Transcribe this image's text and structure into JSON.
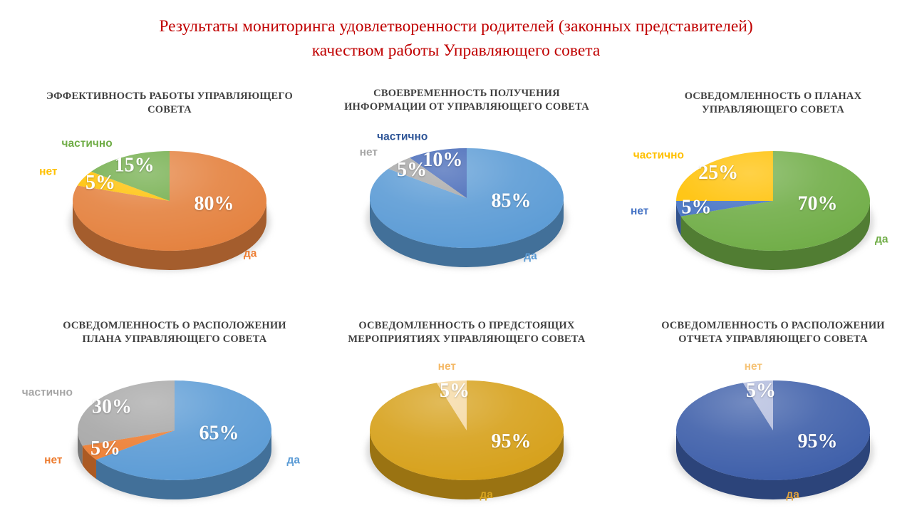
{
  "page_title": {
    "line1": "Результаты мониторинга удовлетворенности родителей (законных представителей)",
    "line2": "качеством работы Управляющего совета",
    "color": "#C00000"
  },
  "chart_data": [
    {
      "type": "pie",
      "title": "ЭФФЕКТИВНОСТЬ РАБОТЫ УПРАВЛЯЮЩЕГО СОВЕТА",
      "labels": [
        "да",
        "нет",
        "частично"
      ],
      "values": [
        80,
        5,
        15
      ],
      "unit": "%",
      "colors": [
        "#E4813E",
        "#FFC000",
        "#6FAC47"
      ],
      "label_colors": [
        "#ED7D31",
        "#FFC000",
        "#70AD47"
      ],
      "percent_label_color": "#FFFFFF",
      "legend": "none",
      "labels_position": "outside",
      "style": "3d-pie"
    },
    {
      "type": "pie",
      "title": "СВОЕВРЕМЕННОСТЬ ПОЛУЧЕНИЯ ИНФОРМАЦИИ ОТ УПРАВЛЯЮЩЕГО СОВЕТА",
      "labels": [
        "да",
        "нет",
        "частично"
      ],
      "values": [
        85,
        5,
        10
      ],
      "unit": "%",
      "colors": [
        "#5B9BD5",
        "#A6A6A6",
        "#3E63B5"
      ],
      "label_colors": [
        "#5B9BD5",
        "#A6A6A6",
        "#2E5597"
      ],
      "percent_label_color": "#FFFFFF",
      "legend": "none",
      "labels_position": "outside",
      "style": "3d-pie"
    },
    {
      "type": "pie",
      "title": "ОСВЕДОМЛЕННОСТЬ О ПЛАНАХ УПРАВЛЯЮЩЕГО СОВЕТА",
      "labels": [
        "да",
        "нет",
        "частично"
      ],
      "values": [
        70,
        5,
        25
      ],
      "unit": "%",
      "colors": [
        "#70AD47",
        "#4472C4",
        "#FFC000"
      ],
      "label_colors": [
        "#70AD47",
        "#4472C4",
        "#FFC000"
      ],
      "percent_label_color": "#FFFFFF",
      "legend": "none",
      "labels_position": "outside",
      "style": "3d-pie"
    },
    {
      "type": "pie",
      "title": "ОСВЕДОМЛЕННОСТЬ О РАСПОЛОЖЕНИИ ПЛАНА УПРАВЛЯЮЩЕГО СОВЕТА",
      "labels": [
        "да",
        "нет",
        "частично"
      ],
      "values": [
        65,
        5,
        30
      ],
      "unit": "%",
      "colors": [
        "#5B9BD5",
        "#ED7D31",
        "#A6A6A6"
      ],
      "label_colors": [
        "#5B9BD5",
        "#ED7D31",
        "#A6A6A6"
      ],
      "percent_label_color": "#FFFFFF",
      "legend": "none",
      "labels_position": "outside",
      "style": "3d-pie"
    },
    {
      "type": "pie",
      "title": "ОСВЕДОМЛЕННОСТЬ О ПРЕДСТОЯЩИХ МЕРОПРИЯТИЯХ УПРАВЛЯЮЩЕГО СОВЕТА",
      "labels": [
        "да",
        "нет"
      ],
      "values": [
        95,
        5
      ],
      "unit": "%",
      "colors": [
        "#D6A019",
        "#F5D79E"
      ],
      "label_colors": [
        "#D8A521",
        "#F4B967"
      ],
      "percent_label_color": "#FFFFFF",
      "legend": "none",
      "labels_position": "outside",
      "style": "3d-pie"
    },
    {
      "type": "pie",
      "title": "ОСВЕДОМЛЕННОСТЬ О РАСПОЛОЖЕНИИ ОТЧЕТА УПРАВЛЯЮЩЕГО СОВЕТА",
      "labels": [
        "да",
        "нет"
      ],
      "values": [
        95,
        5
      ],
      "unit": "%",
      "colors": [
        "#3D5EA9",
        "#AFB9DC"
      ],
      "label_colors": [
        "#E0A33E",
        "#F6C478"
      ],
      "percent_label_color": "#FFFFFF",
      "legend": "none",
      "labels_position": "outside",
      "style": "3d-pie"
    }
  ]
}
